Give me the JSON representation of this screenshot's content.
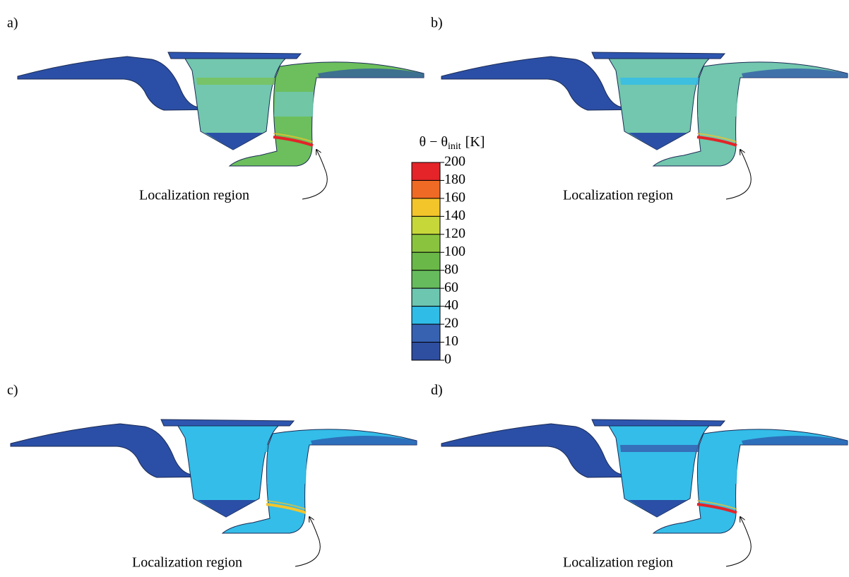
{
  "panels": [
    {
      "label": "a)",
      "annotation": "Localization region"
    },
    {
      "label": "b)",
      "annotation": "Localization region"
    },
    {
      "label": "c)",
      "annotation": "Localization region"
    },
    {
      "label": "d)",
      "annotation": "Localization region"
    }
  ],
  "colorbar": {
    "title": {
      "symbol": "θ − θ",
      "subscript": "init",
      "unit": "[K]"
    },
    "ticks": [
      200,
      180,
      160,
      140,
      120,
      100,
      80,
      60,
      40,
      20,
      10,
      0
    ],
    "colors": [
      "#e42428",
      "#ef6a24",
      "#f4c52a",
      "#c6d73a",
      "#8ac43f",
      "#6ab848",
      "#66bb5c",
      "#6cc6b0",
      "#2fbde8",
      "#3762b2",
      "#2e4ea0"
    ]
  }
}
